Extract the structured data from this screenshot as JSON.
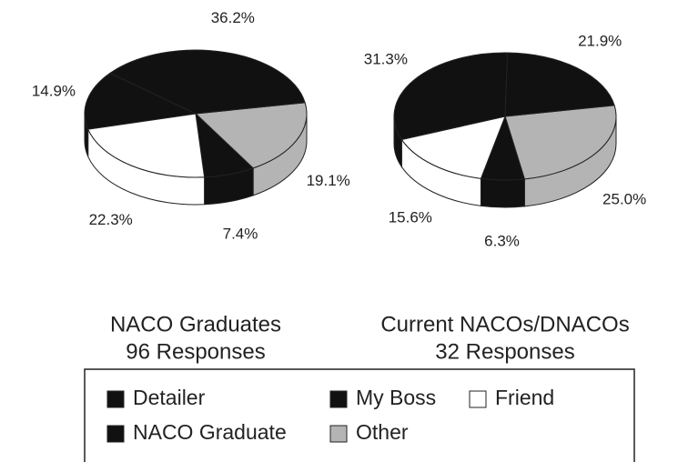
{
  "chart_data": [
    {
      "type": "pie",
      "title": "NACO Graduates",
      "subtitle": "96 Responses",
      "values": [
        19.1,
        7.4,
        22.3,
        14.9,
        36.2
      ],
      "value_labels": [
        "19.1%",
        "7.4%",
        "22.3%",
        "14.9%",
        "36.2%"
      ]
    },
    {
      "type": "pie",
      "title": "Current NACOs/DNACOs",
      "subtitle": "32 Responses",
      "values": [
        25.0,
        6.3,
        15.6,
        31.3,
        21.9
      ],
      "value_labels": [
        "25.0%",
        "6.3%",
        "15.6%",
        "31.3%",
        "21.9%"
      ]
    }
  ],
  "legend": {
    "categories": [
      "Other",
      "My Boss",
      "Friend",
      "NACO Graduate",
      "Detailer"
    ],
    "colors": [
      "#b4b4b4",
      "#111111",
      "#ffffff",
      "#111111",
      "#111111"
    ]
  }
}
